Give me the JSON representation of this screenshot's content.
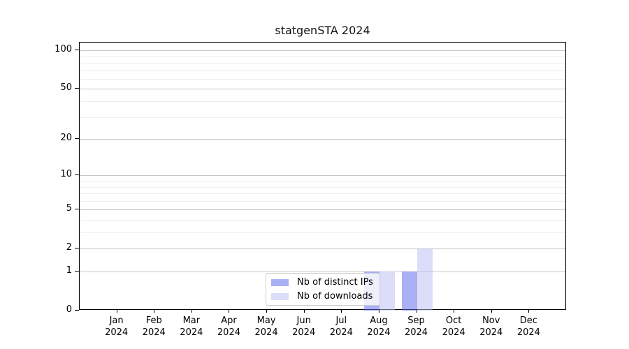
{
  "chart_data": {
    "type": "bar",
    "title": "statgenSTA 2024",
    "y_axis": {
      "scale": "log1p",
      "tick_values": [
        0,
        1,
        2,
        5,
        10,
        20,
        50,
        100
      ],
      "minor_gridlines": [
        3,
        4,
        6,
        7,
        8,
        9,
        30,
        40,
        60,
        70,
        80,
        90
      ],
      "max_value": 115,
      "grid": true
    },
    "x_tick_labels": [
      {
        "month": "Jan",
        "year": "2024"
      },
      {
        "month": "Feb",
        "year": "2024"
      },
      {
        "month": "Mar",
        "year": "2024"
      },
      {
        "month": "Apr",
        "year": "2024"
      },
      {
        "month": "May",
        "year": "2024"
      },
      {
        "month": "Jun",
        "year": "2024"
      },
      {
        "month": "Jul",
        "year": "2024"
      },
      {
        "month": "Aug",
        "year": "2024"
      },
      {
        "month": "Sep",
        "year": "2024"
      },
      {
        "month": "Oct",
        "year": "2024"
      },
      {
        "month": "Nov",
        "year": "2024"
      },
      {
        "month": "Dec",
        "year": "2024"
      }
    ],
    "series": [
      {
        "name": "Nb of distinct IPs",
        "color": "rgba(85,97,235,0.5)",
        "values": [
          0,
          0,
          0,
          0,
          0,
          0,
          0,
          1,
          1,
          0,
          0,
          0
        ]
      },
      {
        "name": "Nb of downloads",
        "color": "rgba(185,187,243,0.5)",
        "values": [
          0,
          0,
          0,
          0,
          0,
          0,
          0,
          1,
          2,
          0,
          0,
          0
        ]
      }
    ],
    "legend_position": "bottom-center"
  },
  "colors": {
    "background": "#ffffff",
    "spine": "#000000",
    "major_grid": "#c6c6c6",
    "minor_grid": "#ededed",
    "legend_border": "#cccccc"
  }
}
